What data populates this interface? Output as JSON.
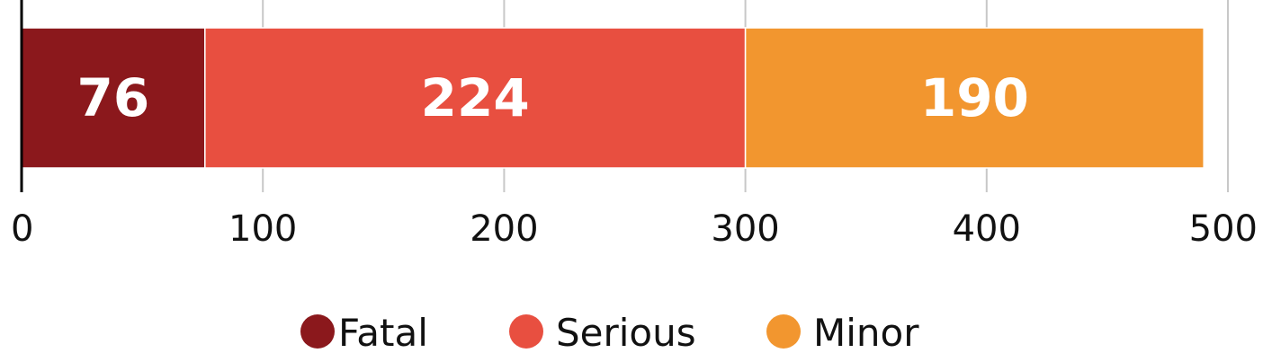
{
  "chart_data": {
    "type": "bar",
    "orientation": "horizontal",
    "stacked": true,
    "categories": [
      ""
    ],
    "series": [
      {
        "name": "Fatal",
        "values": [
          76
        ],
        "color": "#8b181c"
      },
      {
        "name": "Serious",
        "values": [
          224
        ],
        "color": "#e84f40"
      },
      {
        "name": "Minor",
        "values": [
          190
        ],
        "color": "#f2962f"
      }
    ],
    "xlim": [
      0,
      500
    ],
    "x_ticks": [
      "0",
      "100",
      "200",
      "300",
      "400",
      "500"
    ],
    "x_tick_values": [
      0,
      100,
      200,
      300,
      400,
      500
    ],
    "grid": true,
    "legend_position": "bottom",
    "data_labels": true
  }
}
